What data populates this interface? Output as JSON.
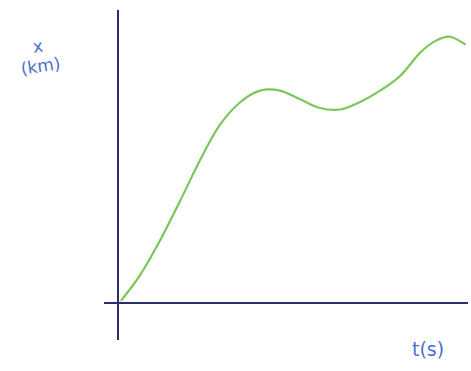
{
  "chart_data": {
    "type": "line",
    "xlabel": "t(s)",
    "ylabel": "x (km)",
    "xlim": [
      0,
      10
    ],
    "ylim": [
      0,
      10
    ],
    "grid": false,
    "tick_labels": false,
    "color": "#7cc65a",
    "x": [
      0.1,
      0.63,
      1.2,
      1.77,
      2.34,
      2.9,
      3.49,
      4.06,
      4.63,
      5.2,
      5.77,
      6.34,
      6.9,
      7.49,
      8.06,
      8.63,
      9.06,
      9.49,
      9.91
    ],
    "values": [
      0.1,
      0.96,
      2.15,
      3.5,
      4.9,
      6.1,
      6.9,
      7.3,
      7.3,
      7.0,
      6.7,
      6.65,
      6.9,
      7.3,
      7.8,
      8.6,
      9.0,
      9.15,
      8.9
    ]
  }
}
